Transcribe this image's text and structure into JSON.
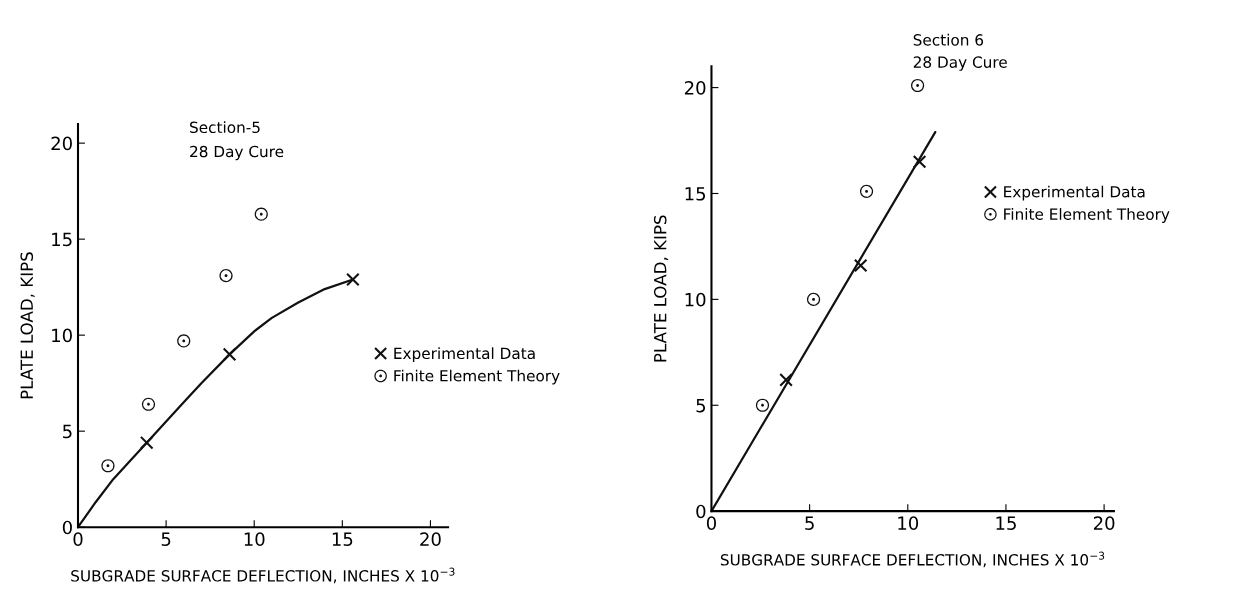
{
  "chart_data": [
    {
      "type": "scatter",
      "title": "Section-5",
      "subtitle": "28 Day Cure",
      "xlabel": "SUBGRADE SURFACE DEFLECTION, INCHES X 10$^{−3}$",
      "ylabel": "PLATE LOAD, KIPS",
      "xlim": [
        0,
        21
      ],
      "ylim": [
        0,
        21
      ],
      "xticks": [
        0,
        5,
        10,
        15,
        20
      ],
      "yticks": [
        0,
        5,
        10,
        15,
        20
      ],
      "grid": false,
      "legend": "right",
      "series": [
        {
          "name": "Experimental Data",
          "color": "#111111",
          "marker": "cross",
          "x": [
            3.9,
            8.6,
            15.6
          ],
          "values": [
            4.4,
            9.0,
            12.9
          ]
        },
        {
          "name": "Finite Element Theory",
          "color": "#111111",
          "marker": "circle",
          "x": [
            1.7,
            4.0,
            6.0,
            8.4,
            10.4
          ],
          "values": [
            3.2,
            6.4,
            9.7,
            13.1,
            16.3
          ]
        },
        {
          "type": "line",
          "color": "#111111",
          "marker": "none",
          "line_style": "solid",
          "x": [
            0,
            1,
            2,
            3,
            3.9,
            5,
            6,
            7,
            8.6,
            10,
            11,
            12.5,
            14,
            15.6
          ],
          "values": [
            0,
            1.3,
            2.5,
            3.5,
            4.4,
            5.5,
            6.5,
            7.5,
            9.0,
            10.2,
            10.9,
            11.7,
            12.4,
            12.9
          ]
        }
      ]
    },
    {
      "type": "scatter",
      "title": "Section 6",
      "subtitle": "28 Day Cure",
      "xlabel": "SUBGRADE SURFACE DEFLECTION, INCHES X 10$^{−3}$",
      "ylabel": "PLATE LOAD, KIPS",
      "xlim": [
        0,
        20.5
      ],
      "ylim": [
        0,
        21
      ],
      "xticks": [
        0,
        5,
        10,
        15,
        20
      ],
      "yticks": [
        0,
        5,
        10,
        15,
        20
      ],
      "grid": false,
      "legend": "right",
      "series": [
        {
          "name": "Experimental Data",
          "color": "#111111",
          "marker": "cross",
          "x": [
            3.8,
            7.6,
            10.6
          ],
          "values": [
            6.2,
            11.6,
            16.5
          ]
        },
        {
          "name": "Finite Element Theory",
          "color": "#111111",
          "marker": "circle",
          "x": [
            2.6,
            5.2,
            7.9,
            10.5
          ],
          "values": [
            5.0,
            10.0,
            15.1,
            20.1
          ]
        },
        {
          "type": "line",
          "color": "#111111",
          "marker": "none",
          "line_style": "solid",
          "x": [
            0,
            11.4
          ],
          "values": [
            0,
            17.9
          ]
        }
      ]
    }
  ]
}
